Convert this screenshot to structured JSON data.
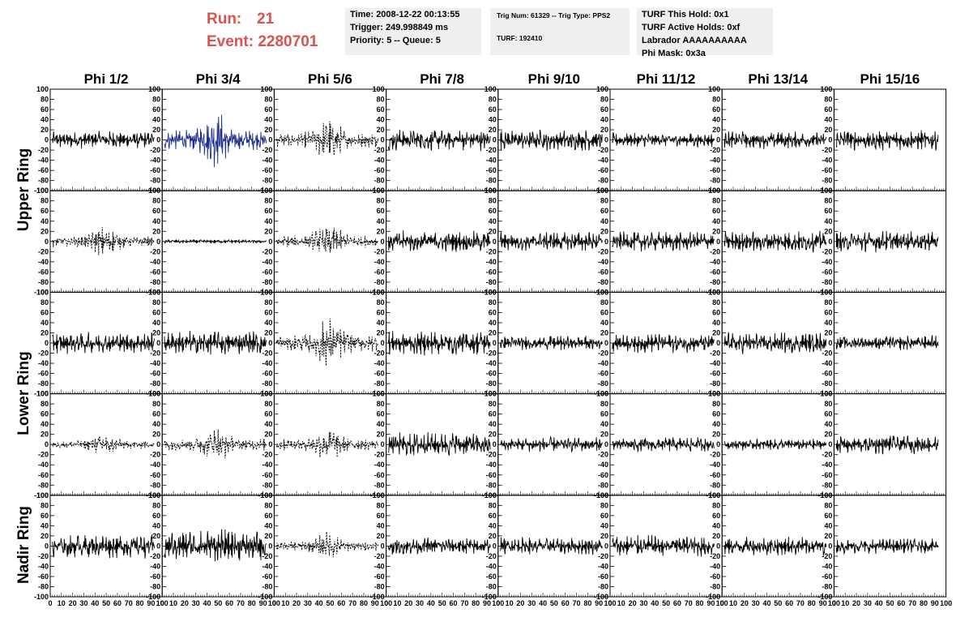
{
  "header": {
    "run_label": "Run:",
    "run_value": "21",
    "event_label": "Event:",
    "event_value": "2280701",
    "box1": [
      "Time: 2008-12-22 00:13:55",
      "Trigger: 249.998849 ms",
      "Priority: 5 -- Queue: 5"
    ],
    "box2": [
      "Trig Num: 61329 -- Trig Type: PPS2",
      "",
      "TURF: 192410"
    ],
    "box3": [
      "TURF This Hold: 0x1",
      "TURF Active Holds: 0xf",
      "Labrador AAAAAAAAAA",
      "Phi Mask: 0x3a"
    ]
  },
  "chart_data": {
    "type": "line",
    "columns": [
      "Phi 1/2",
      "Phi 3/4",
      "Phi 5/6",
      "Phi 7/8",
      "Phi 9/10",
      "Phi 11/12",
      "Phi 13/14",
      "Phi 15/16"
    ],
    "ring_labels": [
      {
        "name": "Upper Ring",
        "rows": [
          0,
          1
        ]
      },
      {
        "name": "Lower Ring",
        "rows": [
          2,
          3
        ]
      },
      {
        "name": "Nadir Ring",
        "rows": [
          4
        ]
      }
    ],
    "ylim": [
      -100,
      100
    ],
    "xlim": [
      0,
      100
    ],
    "y_ticks": [
      "100",
      "80",
      "60",
      "40",
      "20",
      "0",
      "-20",
      "-40",
      "-60",
      "-80",
      "-100"
    ],
    "x_ticks": [
      "0",
      "10",
      "20",
      "30",
      "40",
      "50",
      "60",
      "70",
      "80",
      "90",
      "100"
    ],
    "style_legend": {
      "solid": "black solid",
      "dashed": "black dashed",
      "blue": "blue solid"
    },
    "panels": [
      [
        "solid",
        "blue",
        "dashed",
        "solid",
        "solid",
        "solid",
        "solid",
        "solid"
      ],
      [
        "dashed",
        "solid",
        "dashed",
        "solid",
        "solid",
        "solid",
        "solid",
        "solid"
      ],
      [
        "solid",
        "solid",
        "dashed",
        "solid",
        "solid",
        "solid",
        "solid",
        "solid"
      ],
      [
        "dashed",
        "dashed",
        "dashed",
        "solid",
        "solid",
        "solid",
        "solid",
        "solid"
      ],
      [
        "solid",
        "solid",
        "dashed",
        "solid",
        "solid",
        "solid",
        "solid",
        "solid"
      ]
    ],
    "amplitudes": [
      [
        18,
        45,
        35,
        22,
        22,
        15,
        18,
        22
      ],
      [
        25,
        4,
        28,
        22,
        20,
        20,
        22,
        22
      ],
      [
        22,
        25,
        40,
        25,
        15,
        20,
        22,
        15
      ],
      [
        18,
        28,
        28,
        25,
        15,
        15,
        12,
        20
      ],
      [
        25,
        35,
        22,
        18,
        18,
        22,
        20,
        15
      ]
    ],
    "colors": {
      "trace": "#000000",
      "blue_trace": "#1f2f8f",
      "header_red": "#d9534f",
      "box_bg": "#efefef"
    }
  }
}
